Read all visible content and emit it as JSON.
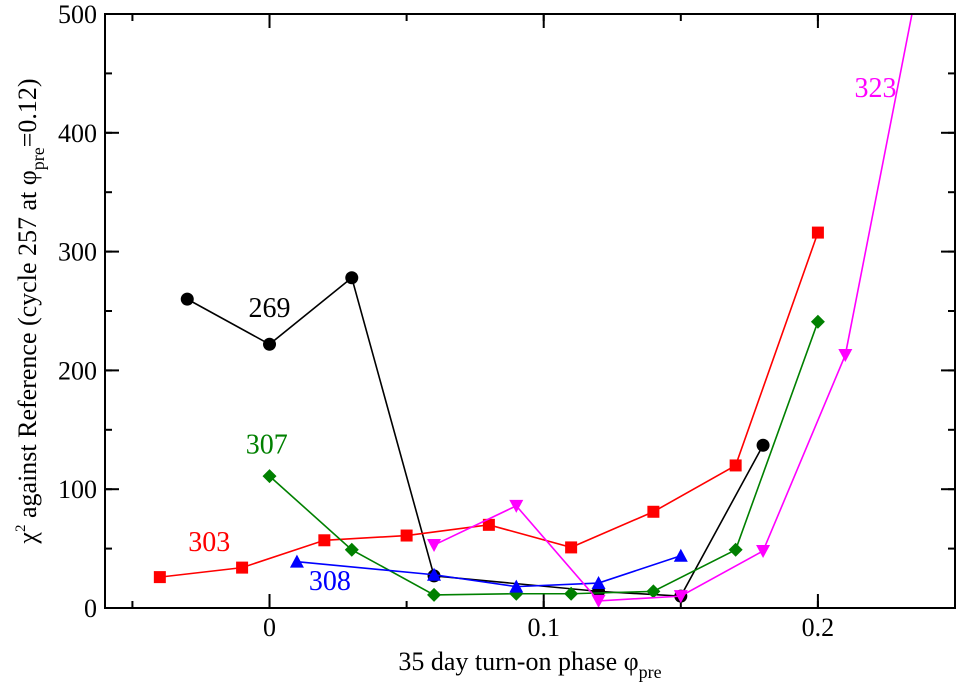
{
  "chart_data": {
    "type": "line",
    "xlabel": {
      "main": "35 day turn-on phase  φ",
      "sub": "pre"
    },
    "ylabel": {
      "chi": "χ",
      "sup": "2",
      "main": " against Reference (cycle 257 at  φ",
      "sub": "pre",
      "tail": "=0.12)"
    },
    "xlim": [
      -0.06,
      0.25
    ],
    "ylim": [
      0,
      500
    ],
    "x_ticks": [
      {
        "value": 0,
        "label": "0"
      },
      {
        "value": 0.1,
        "label": "0.1"
      },
      {
        "value": 0.2,
        "label": "0.2"
      }
    ],
    "y_ticks": [
      {
        "value": 0,
        "label": "0"
      },
      {
        "value": 100,
        "label": "100"
      },
      {
        "value": 200,
        "label": "200"
      },
      {
        "value": 300,
        "label": "300"
      },
      {
        "value": 400,
        "label": "400"
      },
      {
        "value": 500,
        "label": "500"
      }
    ],
    "x_minor_step": 0.05,
    "y_minor_step": 50,
    "grid": false,
    "series": [
      {
        "name": "269",
        "color": "#000000",
        "marker": "circle",
        "label_at": [
          0.0,
          245
        ],
        "points": [
          [
            -0.03,
            260
          ],
          [
            0.0,
            222
          ],
          [
            0.03,
            278
          ],
          [
            0.06,
            27
          ],
          [
            0.12,
            14
          ],
          [
            0.15,
            10
          ],
          [
            0.18,
            137
          ]
        ]
      },
      {
        "name": "303",
        "color": "#ff0000",
        "marker": "square",
        "label_at": [
          -0.022,
          48
        ],
        "points": [
          [
            -0.04,
            26
          ],
          [
            -0.01,
            34
          ],
          [
            0.02,
            57
          ],
          [
            0.05,
            61
          ],
          [
            0.08,
            70
          ],
          [
            0.11,
            51
          ],
          [
            0.14,
            81
          ],
          [
            0.17,
            120
          ],
          [
            0.2,
            316
          ]
        ]
      },
      {
        "name": "307",
        "color": "#008000",
        "marker": "diamond",
        "label_at": [
          -0.001,
          130
        ],
        "points": [
          [
            0.0,
            111
          ],
          [
            0.03,
            49
          ],
          [
            0.06,
            11
          ],
          [
            0.09,
            12
          ],
          [
            0.11,
            12
          ],
          [
            0.14,
            14
          ],
          [
            0.17,
            49
          ],
          [
            0.2,
            241
          ]
        ]
      },
      {
        "name": "308",
        "color": "#0000ff",
        "marker": "triangle-up",
        "label_at": [
          0.022,
          15
        ],
        "points": [
          [
            0.01,
            39
          ],
          [
            0.06,
            28
          ],
          [
            0.09,
            18
          ],
          [
            0.12,
            21
          ],
          [
            0.15,
            44
          ]
        ]
      },
      {
        "name": "323",
        "color": "#ff00ff",
        "marker": "triangle-down",
        "label_at": [
          0.221,
          430
        ],
        "points": [
          [
            0.06,
            53
          ],
          [
            0.09,
            86
          ],
          [
            0.12,
            6
          ],
          [
            0.15,
            10
          ],
          [
            0.18,
            48
          ],
          [
            0.21,
            213
          ],
          [
            0.236,
            520
          ]
        ]
      }
    ]
  }
}
